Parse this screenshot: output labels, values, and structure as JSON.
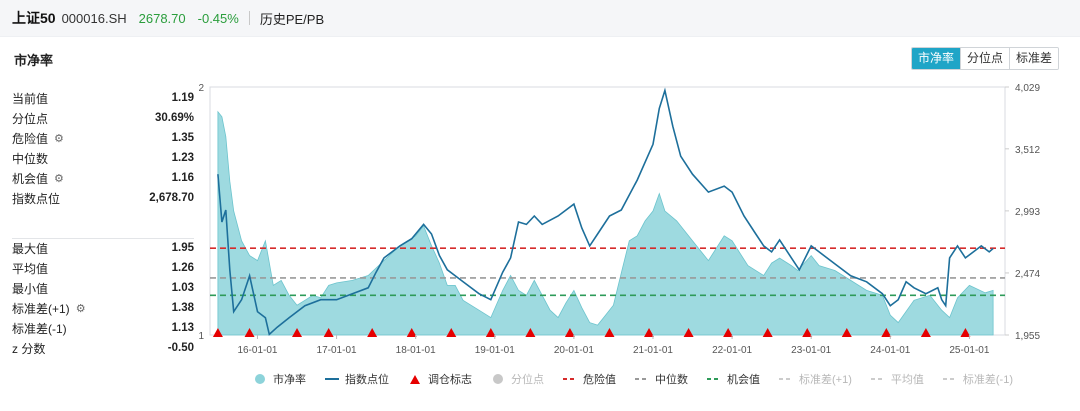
{
  "header": {
    "name": "上证50",
    "code": "000016.SH",
    "price": "2678.70",
    "change": "-0.45%",
    "history_label": "历史PE/PB"
  },
  "panel": {
    "title": "市净率"
  },
  "tabs": [
    {
      "label": "市净率",
      "active": true
    },
    {
      "label": "分位点",
      "active": false
    },
    {
      "label": "标准差",
      "active": false
    }
  ],
  "stats_current": [
    {
      "label": "当前值",
      "value": "1.19",
      "gear": false
    },
    {
      "label": "分位点",
      "value": "30.69%",
      "gear": false
    },
    {
      "label": "危险值",
      "value": "1.35",
      "gear": true
    },
    {
      "label": "中位数",
      "value": "1.23",
      "gear": false
    },
    {
      "label": "机会值",
      "value": "1.16",
      "gear": true
    },
    {
      "label": "指数点位",
      "value": "2,678.70",
      "gear": false
    }
  ],
  "stats_history": [
    {
      "label": "最大值",
      "value": "1.95",
      "gear": false
    },
    {
      "label": "平均值",
      "value": "1.26",
      "gear": false
    },
    {
      "label": "最小值",
      "value": "1.03",
      "gear": false
    },
    {
      "label": "标准差(+1)",
      "value": "1.38",
      "gear": true
    },
    {
      "label": "标准差(-1)",
      "value": "1.13",
      "gear": false
    },
    {
      "label": "z 分数",
      "value": "-0.50",
      "gear": false
    }
  ],
  "colors": {
    "area": "#8dd3da",
    "index_line": "#1d6f9b",
    "danger": "#d62b2b",
    "median": "#999999",
    "opportunity": "#2e9b59",
    "marker": "#e60000",
    "tab_active": "#1fa5c7",
    "price": "#2a9d3c"
  },
  "legend": [
    {
      "label": "市净率",
      "type": "dot",
      "color": "#8dd3da",
      "dim": false
    },
    {
      "label": "指数点位",
      "type": "line",
      "color": "#1d6f9b",
      "dim": false
    },
    {
      "label": "调仓标志",
      "type": "triangle",
      "color": "#e60000",
      "dim": false
    },
    {
      "label": "分位点",
      "type": "dot",
      "color": "#c8c8c8",
      "dim": true
    },
    {
      "label": "危险值",
      "type": "dash",
      "color": "#d62b2b",
      "dim": false
    },
    {
      "label": "中位数",
      "type": "dash",
      "color": "#999999",
      "dim": false
    },
    {
      "label": "机会值",
      "type": "dash",
      "color": "#2e9b59",
      "dim": false
    },
    {
      "label": "标准差(+1)",
      "type": "dash",
      "color": "#cccccc",
      "dim": true
    },
    {
      "label": "平均值",
      "type": "dash",
      "color": "#cccccc",
      "dim": true
    },
    {
      "label": "标准差(-1)",
      "type": "dash",
      "color": "#cccccc",
      "dim": true
    }
  ],
  "chart_data": {
    "type": "area",
    "x_ticks": [
      "16-01-01",
      "17-01-01",
      "18-01-01",
      "19-01-01",
      "20-01-01",
      "21-01-01",
      "22-01-01",
      "23-01-01",
      "24-01-01",
      "25-01-01"
    ],
    "y_left_ticks": [
      "2",
      "1"
    ],
    "y_left_range": [
      1,
      2
    ],
    "y_right_ticks": [
      "4,029",
      "3,512",
      "2,993",
      "2,474",
      "1,955"
    ],
    "y_right_range": [
      1955,
      4029
    ],
    "reference_lines": {
      "danger": 1.35,
      "median": 1.23,
      "opportunity": 1.16
    },
    "pb_series": {
      "name": "市净率",
      "x": [
        2015.5,
        2015.55,
        2015.6,
        2015.65,
        2015.7,
        2015.8,
        2015.9,
        2016.0,
        2016.1,
        2016.2,
        2016.3,
        2016.4,
        2016.5,
        2016.6,
        2016.7,
        2016.8,
        2016.9,
        2017.0,
        2017.2,
        2017.4,
        2017.6,
        2017.8,
        2018.0,
        2018.1,
        2018.2,
        2018.3,
        2018.4,
        2018.5,
        2018.6,
        2018.8,
        2018.95,
        2019.1,
        2019.2,
        2019.3,
        2019.4,
        2019.5,
        2019.6,
        2019.7,
        2019.8,
        2019.9,
        2020.0,
        2020.1,
        2020.2,
        2020.3,
        2020.4,
        2020.5,
        2020.6,
        2020.7,
        2020.8,
        2020.9,
        2021.0,
        2021.08,
        2021.15,
        2021.3,
        2021.5,
        2021.7,
        2021.9,
        2022.0,
        2022.2,
        2022.4,
        2022.5,
        2022.6,
        2022.75,
        2022.83,
        2023.0,
        2023.1,
        2023.3,
        2023.5,
        2023.7,
        2023.9,
        2024.0,
        2024.1,
        2024.3,
        2024.5,
        2024.65,
        2024.75,
        2024.85,
        2025.0,
        2025.2,
        2025.3
      ],
      "y": [
        1.9,
        1.88,
        1.8,
        1.62,
        1.5,
        1.38,
        1.32,
        1.3,
        1.38,
        1.2,
        1.22,
        1.16,
        1.12,
        1.14,
        1.16,
        1.15,
        1.2,
        1.21,
        1.22,
        1.24,
        1.3,
        1.36,
        1.4,
        1.44,
        1.36,
        1.29,
        1.2,
        1.2,
        1.14,
        1.1,
        1.07,
        1.18,
        1.24,
        1.18,
        1.16,
        1.22,
        1.16,
        1.1,
        1.07,
        1.13,
        1.18,
        1.11,
        1.05,
        1.04,
        1.08,
        1.12,
        1.25,
        1.38,
        1.4,
        1.46,
        1.5,
        1.57,
        1.5,
        1.46,
        1.38,
        1.3,
        1.4,
        1.38,
        1.28,
        1.24,
        1.29,
        1.31,
        1.28,
        1.26,
        1.32,
        1.28,
        1.26,
        1.22,
        1.18,
        1.16,
        1.08,
        1.05,
        1.14,
        1.16,
        1.1,
        1.07,
        1.15,
        1.2,
        1.17,
        1.18
      ]
    },
    "index_series": {
      "name": "指数点位",
      "x": [
        2015.5,
        2015.55,
        2015.6,
        2015.65,
        2015.7,
        2015.8,
        2015.9,
        2016.0,
        2016.1,
        2016.15,
        2016.25,
        2016.4,
        2016.6,
        2016.8,
        2017.0,
        2017.2,
        2017.4,
        2017.5,
        2017.6,
        2017.8,
        2017.95,
        2018.1,
        2018.2,
        2018.3,
        2018.4,
        2018.5,
        2018.6,
        2018.8,
        2018.95,
        2019.1,
        2019.2,
        2019.3,
        2019.4,
        2019.5,
        2019.6,
        2019.8,
        2020.0,
        2020.1,
        2020.2,
        2020.3,
        2020.45,
        2020.6,
        2020.8,
        2021.0,
        2021.08,
        2021.15,
        2021.25,
        2021.35,
        2021.5,
        2021.7,
        2021.9,
        2022.0,
        2022.15,
        2022.3,
        2022.4,
        2022.5,
        2022.6,
        2022.75,
        2022.85,
        2023.0,
        2023.1,
        2023.3,
        2023.5,
        2023.7,
        2023.9,
        2024.0,
        2024.1,
        2024.2,
        2024.3,
        2024.45,
        2024.6,
        2024.65,
        2024.7,
        2024.75,
        2024.85,
        2024.95,
        2025.05,
        2025.15,
        2025.25,
        2025.3
      ],
      "y": [
        3300,
        2900,
        3000,
        2500,
        2150,
        2250,
        2450,
        2150,
        2100,
        1960,
        2020,
        2100,
        2200,
        2250,
        2250,
        2300,
        2350,
        2480,
        2600,
        2700,
        2760,
        2880,
        2800,
        2620,
        2500,
        2450,
        2400,
        2300,
        2250,
        2480,
        2600,
        2900,
        2880,
        2950,
        2880,
        2950,
        3050,
        2850,
        2700,
        2800,
        2950,
        3000,
        3250,
        3550,
        3850,
        4000,
        3700,
        3450,
        3300,
        3150,
        3200,
        3150,
        2950,
        2800,
        2700,
        2650,
        2750,
        2600,
        2500,
        2700,
        2650,
        2550,
        2450,
        2400,
        2300,
        2200,
        2250,
        2400,
        2350,
        2300,
        2350,
        2250,
        2200,
        2600,
        2700,
        2600,
        2650,
        2700,
        2650,
        2678.7
      ]
    },
    "rebalance_markers_x": [
      2015.5,
      2015.9,
      2016.5,
      2016.9,
      2017.45,
      2017.95,
      2018.45,
      2018.95,
      2019.45,
      2019.95,
      2020.45,
      2020.95,
      2021.45,
      2021.95,
      2022.45,
      2022.95,
      2023.45,
      2023.95,
      2024.45,
      2024.95
    ]
  }
}
